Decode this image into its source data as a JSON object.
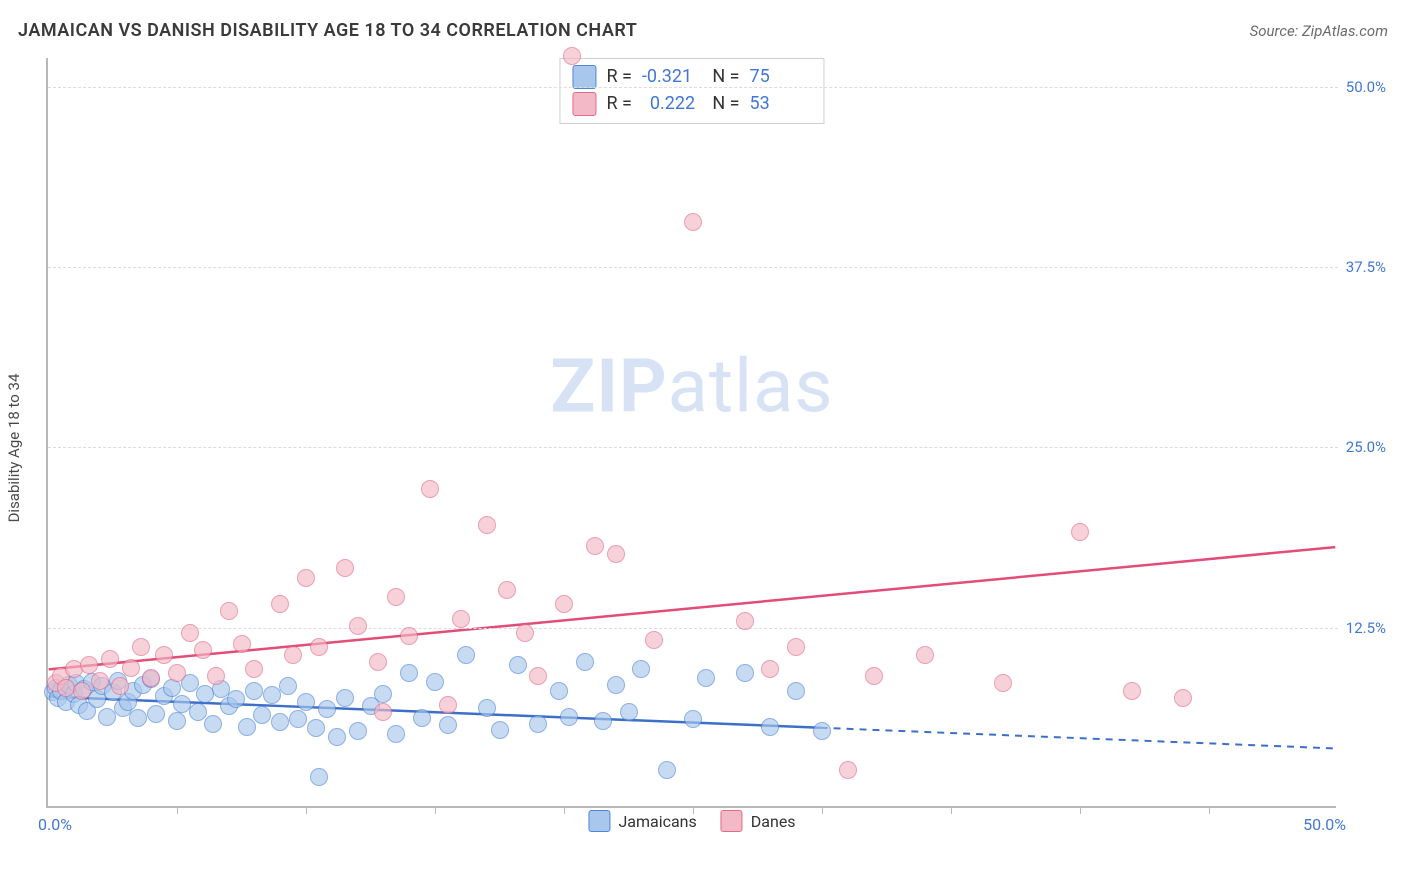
{
  "header": {
    "title": "JAMAICAN VS DANISH DISABILITY AGE 18 TO 34 CORRELATION CHART",
    "source": "Source: ZipAtlas.com"
  },
  "watermark": {
    "bold": "ZIP",
    "rest": "atlas"
  },
  "chart": {
    "type": "scatter",
    "background_color": "#ffffff",
    "grid_color": "#dcdcdc",
    "axis_color": "#b8b8b8",
    "y_axis_label": "Disability Age 18 to 34",
    "xlim": [
      0,
      50
    ],
    "ylim": [
      0,
      52
    ],
    "x_start_label": "0.0%",
    "x_end_label": "50.0%",
    "x_ticks": [
      5,
      10,
      15,
      20,
      25,
      30,
      35,
      40,
      45
    ],
    "y_ticks": [
      {
        "v": 12.5,
        "label": "12.5%"
      },
      {
        "v": 25.0,
        "label": "25.0%"
      },
      {
        "v": 37.5,
        "label": "37.5%"
      },
      {
        "v": 50.0,
        "label": "50.0%"
      }
    ],
    "marker_radius": 9,
    "marker_stroke_width": 1.5,
    "trend_line_width": 2.5,
    "series": [
      {
        "name": "Jamaicans",
        "fill": "#a9c7ec",
        "stroke": "#4f86d6",
        "fill_opacity": 0.65,
        "R": "-0.321",
        "N": "75",
        "trend": {
          "color": "#3d6fc9",
          "y_at_x0": 7.6,
          "y_at_x50": 4.0,
          "solid_until_x": 30
        },
        "points": [
          [
            0.2,
            7.9
          ],
          [
            0.3,
            8.2
          ],
          [
            0.4,
            7.5
          ],
          [
            0.5,
            8.0
          ],
          [
            0.7,
            7.2
          ],
          [
            0.8,
            8.4
          ],
          [
            1.0,
            7.8
          ],
          [
            1.1,
            8.5
          ],
          [
            1.2,
            7.0
          ],
          [
            1.4,
            8.1
          ],
          [
            1.5,
            6.6
          ],
          [
            1.7,
            8.6
          ],
          [
            1.9,
            7.4
          ],
          [
            2.1,
            8.3
          ],
          [
            2.3,
            6.2
          ],
          [
            2.5,
            7.9
          ],
          [
            2.7,
            8.7
          ],
          [
            2.9,
            6.8
          ],
          [
            3.1,
            7.2
          ],
          [
            3.3,
            8.0
          ],
          [
            3.5,
            6.1
          ],
          [
            3.7,
            8.4
          ],
          [
            4.0,
            8.8
          ],
          [
            4.2,
            6.4
          ],
          [
            4.5,
            7.6
          ],
          [
            4.8,
            8.2
          ],
          [
            5.0,
            5.9
          ],
          [
            5.2,
            7.1
          ],
          [
            5.5,
            8.5
          ],
          [
            5.8,
            6.5
          ],
          [
            6.1,
            7.8
          ],
          [
            6.4,
            5.7
          ],
          [
            6.7,
            8.1
          ],
          [
            7.0,
            6.9
          ],
          [
            7.3,
            7.4
          ],
          [
            7.7,
            5.5
          ],
          [
            8.0,
            8.0
          ],
          [
            8.3,
            6.3
          ],
          [
            8.7,
            7.7
          ],
          [
            9.0,
            5.8
          ],
          [
            9.3,
            8.3
          ],
          [
            9.7,
            6.0
          ],
          [
            10.0,
            7.2
          ],
          [
            10.4,
            5.4
          ],
          [
            10.8,
            6.7
          ],
          [
            11.2,
            4.8
          ],
          [
            11.5,
            7.5
          ],
          [
            12.0,
            5.2
          ],
          [
            12.5,
            6.9
          ],
          [
            13.0,
            7.8
          ],
          [
            13.5,
            5.0
          ],
          [
            14.0,
            9.2
          ],
          [
            14.5,
            6.1
          ],
          [
            15.0,
            8.6
          ],
          [
            15.5,
            5.6
          ],
          [
            16.2,
            10.5
          ],
          [
            17.0,
            6.8
          ],
          [
            17.5,
            5.3
          ],
          [
            18.2,
            9.8
          ],
          [
            19.0,
            5.7
          ],
          [
            19.8,
            8.0
          ],
          [
            20.2,
            6.2
          ],
          [
            20.8,
            10.0
          ],
          [
            21.5,
            5.9
          ],
          [
            22.0,
            8.4
          ],
          [
            22.5,
            6.5
          ],
          [
            23.0,
            9.5
          ],
          [
            24.0,
            2.5
          ],
          [
            25.0,
            6.0
          ],
          [
            25.5,
            8.9
          ],
          [
            27.0,
            9.2
          ],
          [
            28.0,
            5.5
          ],
          [
            29.0,
            8.0
          ],
          [
            30.0,
            5.2
          ],
          [
            10.5,
            2.0
          ]
        ]
      },
      {
        "name": "Danes",
        "fill": "#f3b9c7",
        "stroke": "#e36a8a",
        "fill_opacity": 0.65,
        "R": "0.222",
        "N": "53",
        "trend": {
          "color": "#e14d76",
          "y_at_x0": 9.5,
          "y_at_x50": 18.0,
          "solid_until_x": 50
        },
        "points": [
          [
            0.3,
            8.5
          ],
          [
            0.5,
            9.0
          ],
          [
            0.7,
            8.2
          ],
          [
            1.0,
            9.5
          ],
          [
            1.3,
            8.0
          ],
          [
            1.6,
            9.8
          ],
          [
            2.0,
            8.7
          ],
          [
            2.4,
            10.2
          ],
          [
            2.8,
            8.3
          ],
          [
            3.2,
            9.6
          ],
          [
            3.6,
            11.0
          ],
          [
            4.0,
            8.9
          ],
          [
            4.5,
            10.5
          ],
          [
            5.0,
            9.2
          ],
          [
            5.5,
            12.0
          ],
          [
            6.0,
            10.8
          ],
          [
            6.5,
            9.0
          ],
          [
            7.0,
            13.5
          ],
          [
            7.5,
            11.2
          ],
          [
            8.0,
            9.5
          ],
          [
            9.0,
            14.0
          ],
          [
            9.5,
            10.5
          ],
          [
            10.0,
            15.8
          ],
          [
            10.5,
            11.0
          ],
          [
            11.5,
            16.5
          ],
          [
            12.0,
            12.5
          ],
          [
            12.8,
            10.0
          ],
          [
            13.5,
            14.5
          ],
          [
            14.0,
            11.8
          ],
          [
            14.8,
            22.0
          ],
          [
            16.0,
            13.0
          ],
          [
            17.0,
            19.5
          ],
          [
            17.8,
            15.0
          ],
          [
            18.5,
            12.0
          ],
          [
            20.0,
            14.0
          ],
          [
            20.3,
            52.0
          ],
          [
            21.2,
            18.0
          ],
          [
            22.0,
            17.5
          ],
          [
            23.5,
            11.5
          ],
          [
            25.0,
            40.5
          ],
          [
            27.0,
            12.8
          ],
          [
            28.0,
            9.5
          ],
          [
            29.0,
            11.0
          ],
          [
            31.0,
            2.5
          ],
          [
            32.0,
            9.0
          ],
          [
            34.0,
            10.5
          ],
          [
            37.0,
            8.5
          ],
          [
            40.0,
            19.0
          ],
          [
            42.0,
            8.0
          ],
          [
            44.0,
            7.5
          ],
          [
            15.5,
            7.0
          ],
          [
            19.0,
            9.0
          ],
          [
            13.0,
            6.5
          ]
        ]
      }
    ],
    "bottom_legend": [
      {
        "swatch_fill": "#a9c7ec",
        "swatch_stroke": "#4f86d6",
        "label": "Jamaicans"
      },
      {
        "swatch_fill": "#f3b9c7",
        "swatch_stroke": "#e36a8a",
        "label": "Danes"
      }
    ]
  }
}
